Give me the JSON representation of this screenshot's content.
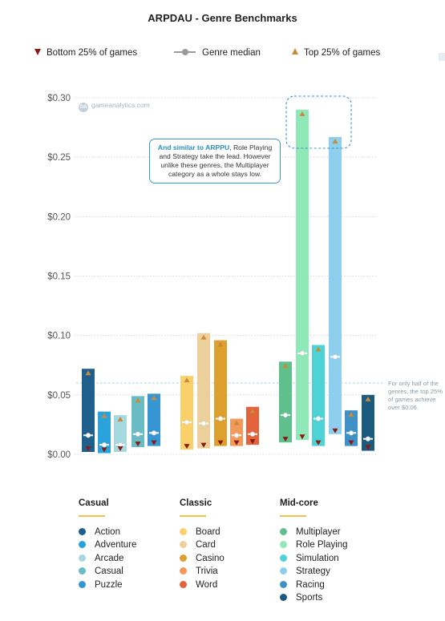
{
  "title": "ARPDAU - Genre Benchmarks",
  "legend": {
    "bottom": "Bottom 25% of games",
    "median": "Genre median",
    "top": "Top 25% of games"
  },
  "watermark": "gameanalytics.com",
  "callout": {
    "highlight": "And similar to ARPPU",
    "text": ", Role Playing and Strategy take the lead. However unlike these genres, the Multiplayer category as a whole stays low."
  },
  "side_note": "For only half of the genres, the top 25% of games achieve over $0.06.",
  "colors": {
    "bottom_marker": "#8b1a10",
    "top_marker": "#c98a3a",
    "median_marker": "#ffffff",
    "reference_line": "#9fcde6"
  },
  "groups": [
    {
      "name": "Casual",
      "items": [
        {
          "label": "Action",
          "color": "#1f5f8b"
        },
        {
          "label": "Adventure",
          "color": "#2aa3dc"
        },
        {
          "label": "Arcade",
          "color": "#a6d8e0"
        },
        {
          "label": "Casual",
          "color": "#69bcc4"
        },
        {
          "label": "Puzzle",
          "color": "#3596d3"
        }
      ]
    },
    {
      "name": "Classic",
      "items": [
        {
          "label": "Board",
          "color": "#fad06a"
        },
        {
          "label": "Card",
          "color": "#ecd09c"
        },
        {
          "label": "Casino",
          "color": "#dda02e"
        },
        {
          "label": "Trivia",
          "color": "#f39a5a"
        },
        {
          "label": "Word",
          "color": "#e3643c"
        }
      ]
    },
    {
      "name": "Mid-core",
      "items": [
        {
          "label": "Multiplayer",
          "color": "#5fc08e"
        },
        {
          "label": "Role Playing",
          "color": "#8fe8b8"
        },
        {
          "label": "Simulation",
          "color": "#4dd3d6"
        },
        {
          "label": "Strategy",
          "color": "#8dcfec"
        },
        {
          "label": "Racing",
          "color": "#3f90c6"
        },
        {
          "label": "Sports",
          "color": "#1a5b7f"
        }
      ]
    }
  ],
  "chart_data": {
    "type": "bar",
    "title": "ARPDAU - Genre Benchmarks",
    "ylim": [
      0,
      0.3
    ],
    "yticks": [
      "$0.00",
      "$0.05",
      "$0.10",
      "$0.15",
      "$0.20",
      "$0.25",
      "$0.30"
    ],
    "reference_line": 0.06,
    "grid": true,
    "categories": [
      "Action",
      "Adventure",
      "Arcade",
      "Casual",
      "Puzzle",
      "Board",
      "Card",
      "Casino",
      "Trivia",
      "Word",
      "Multiplayer",
      "Role Playing",
      "Simulation",
      "Strategy",
      "Racing",
      "Sports"
    ],
    "series": [
      {
        "name": "Bottom 25% of games",
        "values": [
          0.002,
          0.001,
          0.002,
          0.006,
          0.007,
          0.004,
          0.005,
          0.007,
          0.007,
          0.008,
          0.01,
          0.012,
          0.007,
          0.017,
          0.007,
          0.003
        ]
      },
      {
        "name": "Genre median",
        "values": [
          0.016,
          0.008,
          0.008,
          0.017,
          0.018,
          0.027,
          0.026,
          0.03,
          0.016,
          0.017,
          0.033,
          0.085,
          0.03,
          0.082,
          0.018,
          0.013
        ]
      },
      {
        "name": "Top 25% of games",
        "values": [
          0.072,
          0.036,
          0.033,
          0.049,
          0.051,
          0.066,
          0.102,
          0.096,
          0.03,
          0.04,
          0.078,
          0.29,
          0.092,
          0.267,
          0.037,
          0.05
        ]
      }
    ]
  }
}
